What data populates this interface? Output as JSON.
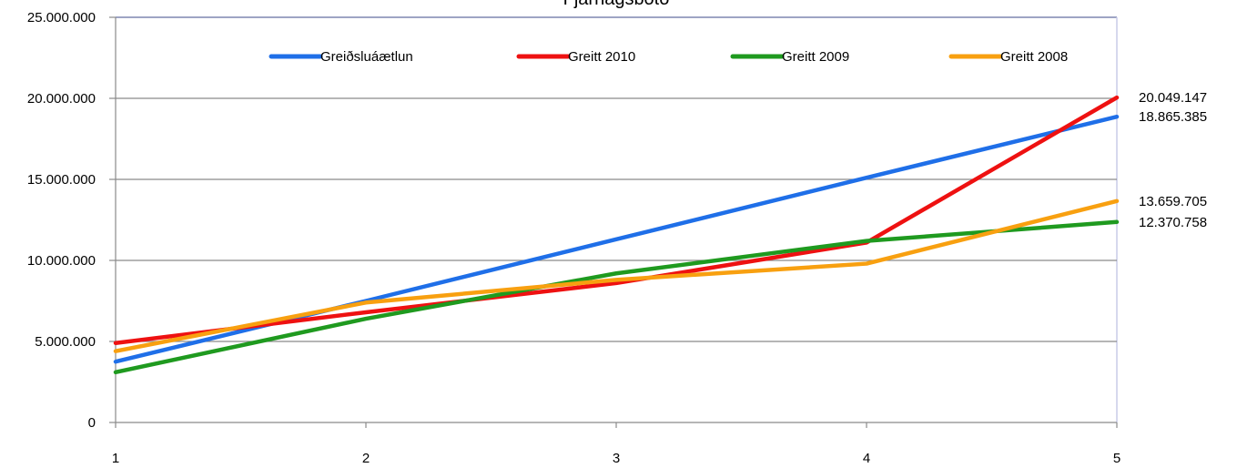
{
  "chart_data": {
    "type": "line",
    "title": "Fjárhagsbótó",
    "categories": [
      "1",
      "2",
      "3",
      "4",
      "5"
    ],
    "ylim": [
      0,
      25000000
    ],
    "yticks": [
      {
        "value": 0,
        "label": "0"
      },
      {
        "value": 5000000,
        "label": "5.000.000"
      },
      {
        "value": 10000000,
        "label": "10.000.000"
      },
      {
        "value": 15000000,
        "label": "15.000.000"
      },
      {
        "value": 20000000,
        "label": "20.000.000"
      },
      {
        "value": 25000000,
        "label": "25.000.000"
      }
    ],
    "grid": true,
    "legend_position": "top",
    "series": [
      {
        "name": "Greiðsluáætlun",
        "color": "#1f6fe8",
        "values": [
          3750000,
          7500000,
          11300000,
          15100000,
          18865385
        ],
        "end_label": "18.865.385"
      },
      {
        "name": "Greitt 2010",
        "color": "#ee1111",
        "values": [
          4900000,
          6800000,
          8600000,
          11100000,
          20049147
        ],
        "end_label": "20.049.147"
      },
      {
        "name": "Greitt 2009",
        "color": "#1f9a1f",
        "values": [
          3100000,
          6400000,
          9200000,
          11200000,
          12370758
        ],
        "end_label": "12.370.758"
      },
      {
        "name": "Greitt 2008",
        "color": "#f8a010",
        "values": [
          4400000,
          7400000,
          8800000,
          9800000,
          13659705
        ],
        "end_label": "13.659.705"
      }
    ]
  }
}
